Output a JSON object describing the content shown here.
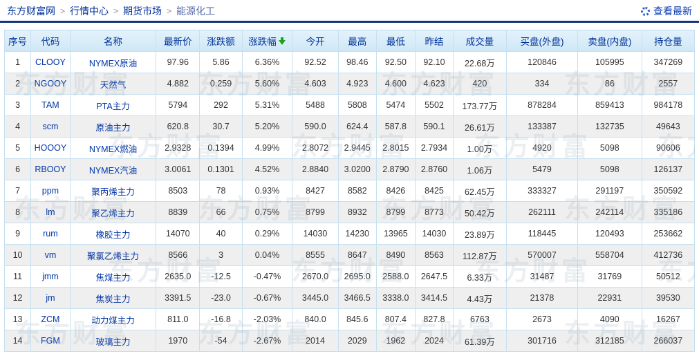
{
  "breadcrumb": {
    "separator": ">",
    "items": [
      "东方财富网",
      "行情中心",
      "期货市场",
      "能源化工"
    ]
  },
  "toolbar": {
    "refresh_label": "查看最新"
  },
  "watermark": {
    "text": "东方财富"
  },
  "colors": {
    "up": "#ff0000",
    "down": "#009900",
    "link": "#0036a8",
    "header_text": "#003399",
    "divider": "#15357e",
    "header_bg": "#cfe7f6",
    "stripe_bg": "#efefef"
  },
  "table": {
    "columns": [
      {
        "key": "seq",
        "label": "序号"
      },
      {
        "key": "code",
        "label": "代码"
      },
      {
        "key": "name",
        "label": "名称"
      },
      {
        "key": "last",
        "label": "最新价"
      },
      {
        "key": "chg",
        "label": "涨跌额"
      },
      {
        "key": "pct",
        "label": "涨跌幅",
        "sort": "desc"
      },
      {
        "key": "open",
        "label": "今开"
      },
      {
        "key": "high",
        "label": "最高"
      },
      {
        "key": "low",
        "label": "最低"
      },
      {
        "key": "prev",
        "label": "昨结"
      },
      {
        "key": "vol",
        "label": "成交量"
      },
      {
        "key": "buy",
        "label": "买盘(外盘)"
      },
      {
        "key": "sell",
        "label": "卖盘(内盘)"
      },
      {
        "key": "oi",
        "label": "持仓量"
      }
    ],
    "rows": [
      {
        "seq": "1",
        "code": "CLOOY",
        "name": "NYMEX原油",
        "last": {
          "v": "97.96",
          "c": "up"
        },
        "chg": {
          "v": "5.86",
          "c": "up"
        },
        "pct": {
          "v": "6.36%",
          "c": "up"
        },
        "open": {
          "v": "92.52",
          "c": "up"
        },
        "high": {
          "v": "98.46",
          "c": "up"
        },
        "low": {
          "v": "92.50",
          "c": "up"
        },
        "prev": "92.10",
        "vol": "22.68万",
        "buy": "120846",
        "sell": "105995",
        "oi": "347269"
      },
      {
        "seq": "2",
        "code": "NGOOY",
        "name": "天然气",
        "last": {
          "v": "4.882",
          "c": "up"
        },
        "chg": {
          "v": "0.259",
          "c": "up"
        },
        "pct": {
          "v": "5.60%",
          "c": "up"
        },
        "open": {
          "v": "4.603",
          "c": "down"
        },
        "high": {
          "v": "4.923",
          "c": "up"
        },
        "low": {
          "v": "4.600",
          "c": "down"
        },
        "prev": "4.623",
        "vol": "420",
        "buy": "334",
        "sell": "86",
        "oi": "2557"
      },
      {
        "seq": "3",
        "code": "TAM",
        "name": "PTA主力",
        "last": {
          "v": "5794",
          "c": "up"
        },
        "chg": {
          "v": "292",
          "c": "up"
        },
        "pct": {
          "v": "5.31%",
          "c": "up"
        },
        "open": {
          "v": "5488",
          "c": "down"
        },
        "high": {
          "v": "5808",
          "c": "up"
        },
        "low": {
          "v": "5474",
          "c": "down"
        },
        "prev": "5502",
        "vol": "173.77万",
        "buy": "878284",
        "sell": "859413",
        "oi": "984178"
      },
      {
        "seq": "4",
        "code": "scm",
        "name": "原油主力",
        "last": {
          "v": "620.8",
          "c": "up"
        },
        "chg": {
          "v": "30.7",
          "c": "up"
        },
        "pct": {
          "v": "5.20%",
          "c": "up"
        },
        "open": {
          "v": "590.0",
          "c": "down"
        },
        "high": {
          "v": "624.4",
          "c": "up"
        },
        "low": {
          "v": "587.8",
          "c": "down"
        },
        "prev": "590.1",
        "vol": "26.61万",
        "buy": "133387",
        "sell": "132735",
        "oi": "49643"
      },
      {
        "seq": "5",
        "code": "HOOOY",
        "name": "NYMEX燃油",
        "last": {
          "v": "2.9328",
          "c": "up"
        },
        "chg": {
          "v": "0.1394",
          "c": "up"
        },
        "pct": {
          "v": "4.99%",
          "c": "up"
        },
        "open": {
          "v": "2.8072",
          "c": "up"
        },
        "high": {
          "v": "2.9445",
          "c": "up"
        },
        "low": {
          "v": "2.8015",
          "c": "up"
        },
        "prev": "2.7934",
        "vol": "1.00万",
        "buy": "4920",
        "sell": "5098",
        "oi": "90606"
      },
      {
        "seq": "6",
        "code": "RBOOY",
        "name": "NYMEX汽油",
        "last": {
          "v": "3.0061",
          "c": "up"
        },
        "chg": {
          "v": "0.1301",
          "c": "up"
        },
        "pct": {
          "v": "4.52%",
          "c": "up"
        },
        "open": {
          "v": "2.8840",
          "c": "up"
        },
        "high": {
          "v": "3.0200",
          "c": "up"
        },
        "low": {
          "v": "2.8790",
          "c": "up"
        },
        "prev": "2.8760",
        "vol": "1.06万",
        "buy": "5479",
        "sell": "5098",
        "oi": "126137"
      },
      {
        "seq": "7",
        "code": "ppm",
        "name": "聚丙烯主力",
        "last": {
          "v": "8503",
          "c": "up"
        },
        "chg": {
          "v": "78",
          "c": "up"
        },
        "pct": {
          "v": "0.93%",
          "c": "up"
        },
        "open": {
          "v": "8427",
          "c": "up"
        },
        "high": {
          "v": "8582",
          "c": "up"
        },
        "low": {
          "v": "8426",
          "c": "up"
        },
        "prev": "8425",
        "vol": "62.45万",
        "buy": "333327",
        "sell": "291197",
        "oi": "350592"
      },
      {
        "seq": "8",
        "code": "lm",
        "name": "聚乙烯主力",
        "last": {
          "v": "8839",
          "c": "up"
        },
        "chg": {
          "v": "66",
          "c": "up"
        },
        "pct": {
          "v": "0.75%",
          "c": "up"
        },
        "open": {
          "v": "8799",
          "c": "up"
        },
        "high": {
          "v": "8932",
          "c": "up"
        },
        "low": {
          "v": "8799",
          "c": "up"
        },
        "prev": "8773",
        "vol": "50.42万",
        "buy": "262111",
        "sell": "242114",
        "oi": "335186"
      },
      {
        "seq": "9",
        "code": "rum",
        "name": "橡胶主力",
        "last": {
          "v": "14070",
          "c": "up"
        },
        "chg": {
          "v": "40",
          "c": "up"
        },
        "pct": {
          "v": "0.29%",
          "c": "up"
        },
        "open": {
          "v": "14030",
          "c": "flat"
        },
        "high": {
          "v": "14230",
          "c": "up"
        },
        "low": {
          "v": "13965",
          "c": "down"
        },
        "prev": "14030",
        "vol": "23.89万",
        "buy": "118445",
        "sell": "120493",
        "oi": "253662"
      },
      {
        "seq": "10",
        "code": "vm",
        "name": "聚氯乙烯主力",
        "last": {
          "v": "8566",
          "c": "up"
        },
        "chg": {
          "v": "3",
          "c": "up"
        },
        "pct": {
          "v": "0.04%",
          "c": "up"
        },
        "open": {
          "v": "8555",
          "c": "down"
        },
        "high": {
          "v": "8647",
          "c": "up"
        },
        "low": {
          "v": "8490",
          "c": "down"
        },
        "prev": "8563",
        "vol": "112.87万",
        "buy": "570007",
        "sell": "558704",
        "oi": "412736"
      },
      {
        "seq": "11",
        "code": "jmm",
        "name": "焦煤主力",
        "last": {
          "v": "2635.0",
          "c": "down"
        },
        "chg": {
          "v": "-12.5",
          "c": "down"
        },
        "pct": {
          "v": "-0.47%",
          "c": "down"
        },
        "open": {
          "v": "2670.0",
          "c": "up"
        },
        "high": {
          "v": "2695.0",
          "c": "up"
        },
        "low": {
          "v": "2588.0",
          "c": "down"
        },
        "prev": "2647.5",
        "vol": "6.33万",
        "buy": "31487",
        "sell": "31769",
        "oi": "50512"
      },
      {
        "seq": "12",
        "code": "jm",
        "name": "焦炭主力",
        "last": {
          "v": "3391.5",
          "c": "down"
        },
        "chg": {
          "v": "-23.0",
          "c": "down"
        },
        "pct": {
          "v": "-0.67%",
          "c": "down"
        },
        "open": {
          "v": "3445.0",
          "c": "up"
        },
        "high": {
          "v": "3466.5",
          "c": "up"
        },
        "low": {
          "v": "3338.0",
          "c": "down"
        },
        "prev": "3414.5",
        "vol": "4.43万",
        "buy": "21378",
        "sell": "22931",
        "oi": "39530"
      },
      {
        "seq": "13",
        "code": "ZCM",
        "name": "动力煤主力",
        "last": {
          "v": "811.0",
          "c": "down"
        },
        "chg": {
          "v": "-16.8",
          "c": "down"
        },
        "pct": {
          "v": "-2.03%",
          "c": "down"
        },
        "open": {
          "v": "840.0",
          "c": "up"
        },
        "high": {
          "v": "845.6",
          "c": "up"
        },
        "low": {
          "v": "807.4",
          "c": "down"
        },
        "prev": "827.8",
        "vol": "6763",
        "buy": "2673",
        "sell": "4090",
        "oi": "16267"
      },
      {
        "seq": "14",
        "code": "FGM",
        "name": "玻璃主力",
        "last": {
          "v": "1970",
          "c": "down"
        },
        "chg": {
          "v": "-54",
          "c": "down"
        },
        "pct": {
          "v": "-2.67%",
          "c": "down"
        },
        "open": {
          "v": "2014",
          "c": "down"
        },
        "high": {
          "v": "2029",
          "c": "up"
        },
        "low": {
          "v": "1962",
          "c": "down"
        },
        "prev": "2024",
        "vol": "61.39万",
        "buy": "301716",
        "sell": "312185",
        "oi": "266037"
      }
    ]
  }
}
